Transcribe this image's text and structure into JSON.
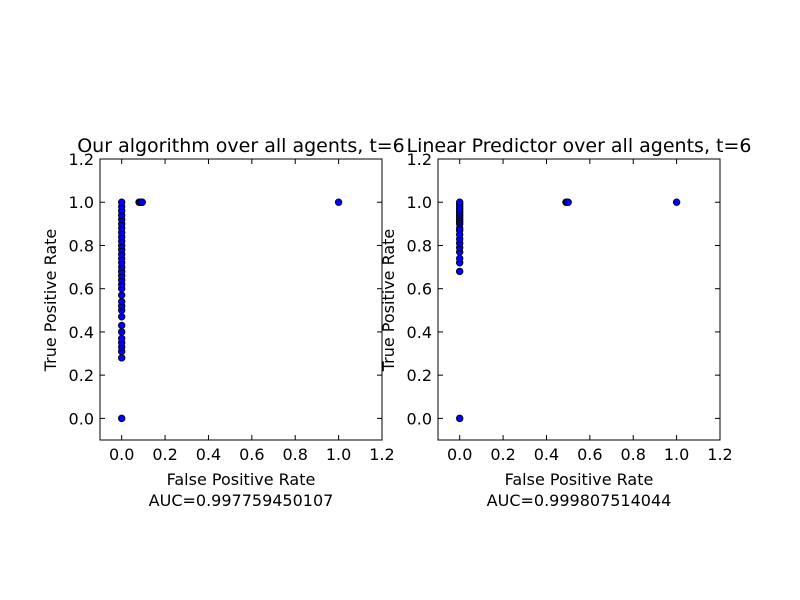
{
  "chart_data": [
    {
      "type": "scatter",
      "title": "Our algorithm over all agents, t=6",
      "xlabel": "False Positive Rate",
      "ylabel": "True Positive Rate",
      "auc_text": "AUC=0.997759450107",
      "xlim": [
        -0.1,
        1.2
      ],
      "ylim": [
        -0.1,
        1.2
      ],
      "xticks": [
        "0.0",
        "0.2",
        "0.4",
        "0.6",
        "0.8",
        "1.0",
        "1.2"
      ],
      "yticks": [
        "0.0",
        "0.2",
        "0.4",
        "0.6",
        "0.8",
        "1.0",
        "1.2"
      ],
      "grid": false,
      "marker_color": "#0000ff",
      "points": [
        [
          0.0,
          0.0
        ],
        [
          0.0,
          0.28
        ],
        [
          0.0,
          0.31
        ],
        [
          0.0,
          0.33
        ],
        [
          0.0,
          0.35
        ],
        [
          0.0,
          0.37
        ],
        [
          0.0,
          0.4
        ],
        [
          0.0,
          0.43
        ],
        [
          0.0,
          0.47
        ],
        [
          0.0,
          0.5
        ],
        [
          0.0,
          0.52
        ],
        [
          0.0,
          0.54
        ],
        [
          0.0,
          0.57
        ],
        [
          0.0,
          0.6
        ],
        [
          0.0,
          0.62
        ],
        [
          0.0,
          0.64
        ],
        [
          0.0,
          0.66
        ],
        [
          0.0,
          0.68
        ],
        [
          0.0,
          0.7
        ],
        [
          0.0,
          0.72
        ],
        [
          0.0,
          0.74
        ],
        [
          0.0,
          0.76
        ],
        [
          0.0,
          0.78
        ],
        [
          0.0,
          0.8
        ],
        [
          0.0,
          0.82
        ],
        [
          0.0,
          0.84
        ],
        [
          0.0,
          0.86
        ],
        [
          0.0,
          0.88
        ],
        [
          0.0,
          0.9
        ],
        [
          0.0,
          0.92
        ],
        [
          0.0,
          0.94
        ],
        [
          0.0,
          0.96
        ],
        [
          0.0,
          0.98
        ],
        [
          0.0,
          1.0
        ],
        [
          0.08,
          1.0
        ],
        [
          0.085,
          1.0
        ],
        [
          0.09,
          1.0
        ],
        [
          0.095,
          1.0
        ],
        [
          1.0,
          1.0
        ]
      ]
    },
    {
      "type": "scatter",
      "title": "Linear Predictor over all agents, t=6",
      "xlabel": "False Positive Rate",
      "ylabel": "True Positive Rate",
      "auc_text": "AUC=0.999807514044",
      "xlim": [
        -0.1,
        1.2
      ],
      "ylim": [
        -0.1,
        1.2
      ],
      "xticks": [
        "0.0",
        "0.2",
        "0.4",
        "0.6",
        "0.8",
        "1.0",
        "1.2"
      ],
      "yticks": [
        "0.0",
        "0.2",
        "0.4",
        "0.6",
        "0.8",
        "1.0",
        "1.2"
      ],
      "grid": false,
      "marker_color": "#0000ff",
      "points": [
        [
          0.0,
          0.0
        ],
        [
          0.0,
          0.68
        ],
        [
          0.0,
          0.72
        ],
        [
          0.0,
          0.74
        ],
        [
          0.0,
          0.77
        ],
        [
          0.0,
          0.79
        ],
        [
          0.0,
          0.81
        ],
        [
          0.0,
          0.83
        ],
        [
          0.0,
          0.85
        ],
        [
          0.0,
          0.87
        ],
        [
          0.0,
          0.88
        ],
        [
          0.0,
          0.9
        ],
        [
          0.0,
          0.91
        ],
        [
          0.0,
          0.92
        ],
        [
          0.0,
          0.93
        ],
        [
          0.0,
          0.94
        ],
        [
          0.0,
          0.95
        ],
        [
          0.0,
          0.96
        ],
        [
          0.0,
          0.97
        ],
        [
          0.0,
          0.98
        ],
        [
          0.0,
          0.99
        ],
        [
          0.0,
          1.0
        ],
        [
          0.49,
          1.0
        ],
        [
          0.495,
          1.0
        ],
        [
          0.5,
          1.0
        ],
        [
          1.0,
          1.0
        ]
      ]
    }
  ]
}
